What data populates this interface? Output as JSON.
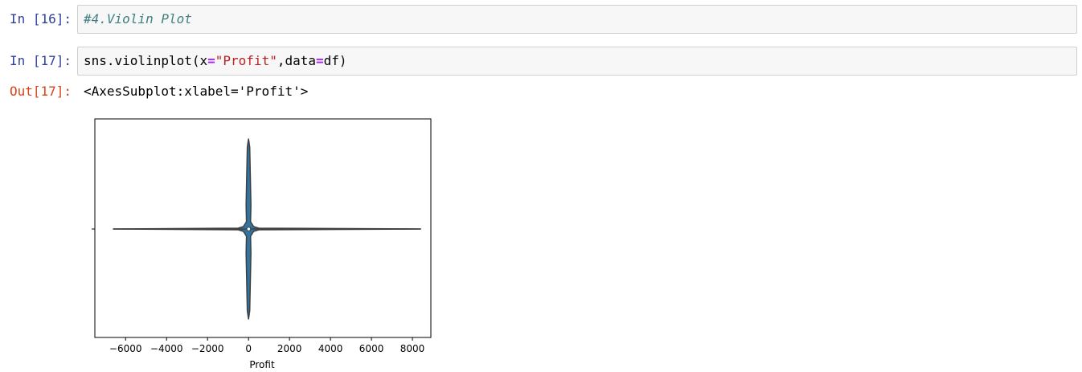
{
  "cells": [
    {
      "prompt": "In [16]:",
      "code": "#4.Violin Plot"
    },
    {
      "prompt": "In [17]:",
      "code": {
        "prefix": "sns.violinplot(x",
        "op1": "=",
        "str": "\"Profit\"",
        "mid": ",data",
        "op2": "=",
        "suffix": "df)"
      },
      "out_prompt": "Out[17]:",
      "output_text": "<AxesSubplot:xlabel='Profit'>"
    }
  ],
  "colors": {
    "violin_fill": "#3274a1",
    "violin_edge": "#3f3f3f",
    "box_line": "#3f3f3f",
    "median_dot": "#ffffff"
  },
  "chart_data": {
    "type": "violin",
    "title": "",
    "xlabel": "Profit",
    "ylabel": "",
    "xlim": [
      -7500,
      8900
    ],
    "xticks": [
      -6000,
      -4000,
      -2000,
      0,
      2000,
      4000,
      6000,
      8000
    ],
    "xtick_labels": [
      "−6000",
      "−4000",
      "−2000",
      "0",
      "2000",
      "4000",
      "6000",
      "8000"
    ],
    "grid": false,
    "series": [
      {
        "min": -6600,
        "q1": 2,
        "median": 9,
        "q3": 29,
        "max": 8400,
        "density_profile": [
          {
            "x": -6600,
            "half_width": 0.0
          },
          {
            "x": -500,
            "half_width": 0.003
          },
          {
            "x": -250,
            "half_width": 0.02
          },
          {
            "x": -100,
            "half_width": 0.05
          },
          {
            "x": 0,
            "half_width": 0.4
          },
          {
            "x": 100,
            "half_width": 0.05
          },
          {
            "x": 250,
            "half_width": 0.02
          },
          {
            "x": 500,
            "half_width": 0.003
          },
          {
            "x": 8400,
            "half_width": 0.0
          }
        ]
      }
    ]
  }
}
